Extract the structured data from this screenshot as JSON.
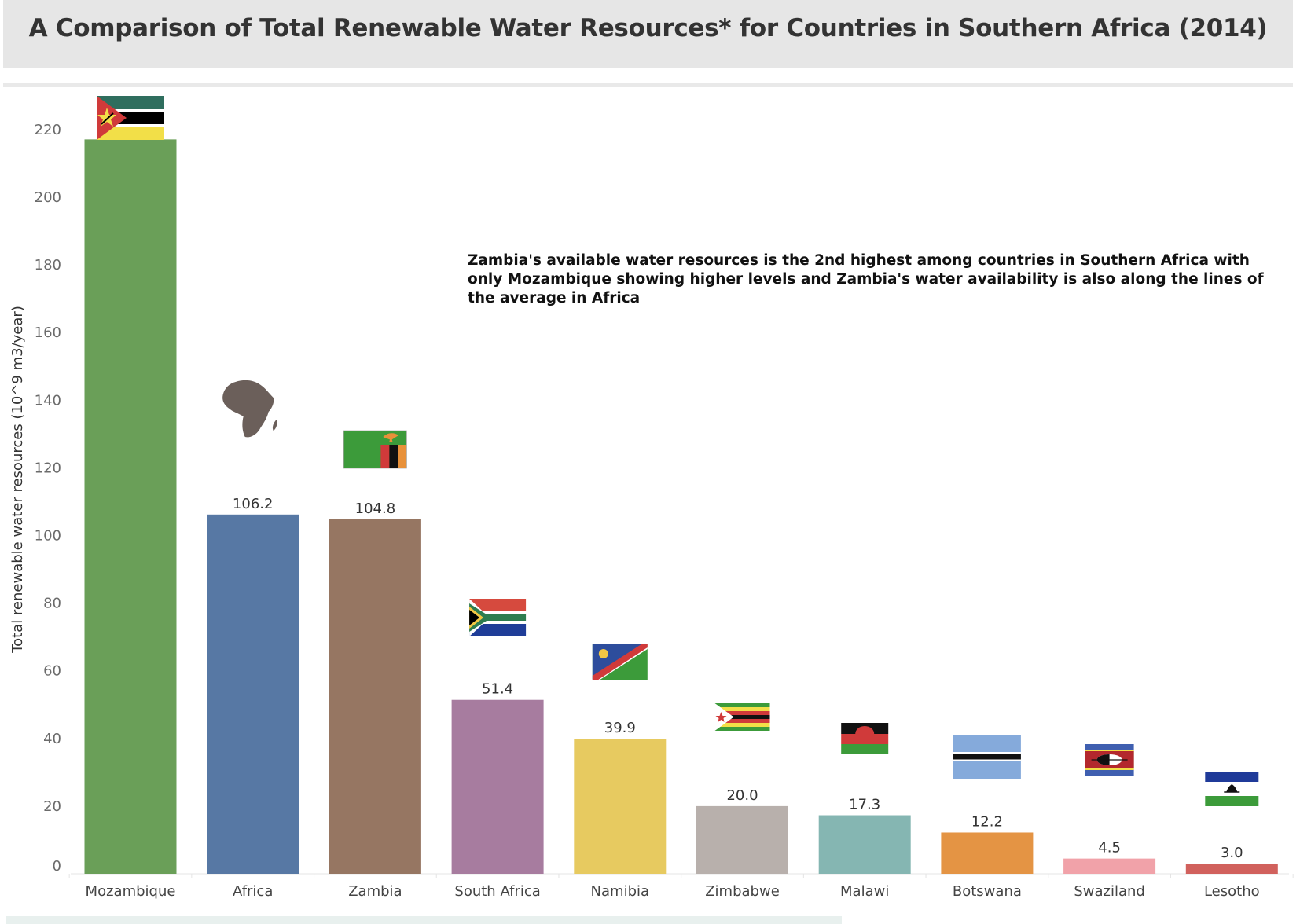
{
  "chart_data": {
    "type": "bar",
    "title": "A Comparison of Total Renewable Water Resources* for Countries in Southern Africa (2014)",
    "xlabel": "",
    "ylabel": "Total renewable water resources (10^9 m3/year)",
    "ylim": [
      0,
      232
    ],
    "yticks": [
      0,
      20,
      40,
      60,
      80,
      100,
      120,
      140,
      160,
      180,
      200,
      220
    ],
    "grid": false,
    "categories": [
      "Mozambique",
      "Africa",
      "Zambia",
      "South Africa",
      "Namibia",
      "Zimbabwe",
      "Malawi",
      "Botswana",
      "Swaziland",
      "Lesotho"
    ],
    "values": [
      217.1,
      106.2,
      104.8,
      51.4,
      39.9,
      20.0,
      17.3,
      12.2,
      4.5,
      3.0
    ],
    "data_labels": [
      "",
      "106.2",
      "104.8",
      "51.4",
      "39.9",
      "20.0",
      "17.3",
      "12.2",
      "4.5",
      "3.0"
    ],
    "colors": [
      "#6a9f58",
      "#5778a4",
      "#967662",
      "#a77c9f",
      "#e7ca60",
      "#b8b0ac",
      "#85b6b2",
      "#e49444",
      "#f1a2a9",
      "#d1615d"
    ],
    "annotation": "Zambia's available water resources is the 2nd highest among countries in Southern Africa with only Mozambique showing higher levels and Zambia's water availability is also along the lines of the average in Africa",
    "icons": [
      "mozambique-flag-icon",
      "africa-map-icon",
      "zambia-flag-icon",
      "south-africa-flag-icon",
      "namibia-flag-icon",
      "zimbabwe-flag-icon",
      "malawi-flag-icon",
      "botswana-flag-icon",
      "swaziland-flag-icon",
      "lesotho-flag-icon"
    ]
  }
}
